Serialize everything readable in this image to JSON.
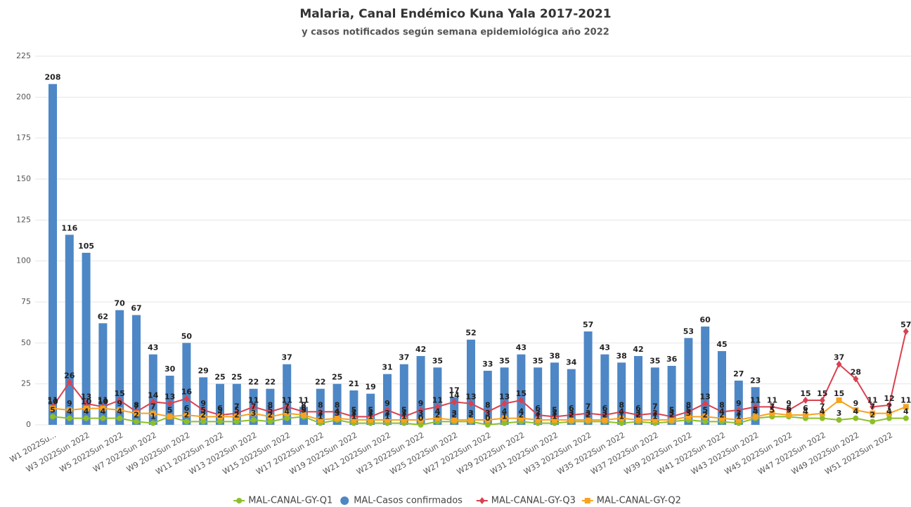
{
  "chart_data": {
    "type": "combo",
    "title": "Malaria, Canal Endémico Kuna Yala 2017-2021",
    "subtitle": "y casos notificados según semana epidemiológica año 2022",
    "categories": [
      "W1 2022Su...",
      null,
      "W3 2022Sun 2022",
      null,
      "W5 2022Sun 2022",
      null,
      "W7 2022Sun 2022",
      null,
      "W9 2022Sun 2022",
      null,
      "W11 2022Sun 2022",
      null,
      "W13 2022Sun 2022",
      null,
      "W15 2022Sun 2022",
      null,
      "W17 2022Sun 2022",
      null,
      "W19 2022Sun 2022",
      null,
      "W21 2022Sun 2022",
      null,
      "W23 2022Sun 2022",
      null,
      "W25 2022Sun 2022",
      null,
      "W27 2022Sun 2022",
      null,
      "W29 2022Sun 2022",
      null,
      "W31 2022Sun 2022",
      null,
      "W33 2022Sun 2022",
      null,
      "W35 2022Sun 2022",
      null,
      "W37 2022Sun 2022",
      null,
      "W39 2022Sun 2022",
      null,
      "W41 2022Sun 2022",
      null,
      "W43 2022Sun 2022",
      null,
      "W45 2022Sun 2022",
      null,
      "W47 2022Sun 2022",
      null,
      "W49 2022Sun 2022",
      null,
      "W51 2022Sun 2022",
      null
    ],
    "series": [
      {
        "name": "MAL-CANAL-GY-Q1",
        "type": "line",
        "marker": "circle",
        "color": "#8dbf2b",
        "values": [
          5,
          4,
          4,
          4,
          4,
          2,
          1,
          5,
          2,
          2,
          2,
          2,
          3,
          2,
          4,
          5,
          1,
          3,
          1,
          1,
          1,
          1,
          0,
          2,
          2,
          2,
          0,
          1,
          2,
          1,
          1,
          2,
          2,
          2,
          1,
          2,
          1,
          2,
          3,
          2,
          2,
          1,
          4,
          5,
          5,
          4,
          4,
          3,
          4,
          2,
          4,
          4
        ]
      },
      {
        "name": "MAL-Casos confirmados",
        "type": "bar",
        "marker": "circle",
        "color": "#4e87c6",
        "values": [
          208,
          116,
          105,
          62,
          70,
          67,
          43,
          30,
          50,
          29,
          25,
          25,
          22,
          22,
          37,
          11,
          22,
          25,
          21,
          19,
          31,
          37,
          42,
          35,
          17,
          52,
          33,
          35,
          43,
          35,
          38,
          34,
          57,
          43,
          38,
          42,
          35,
          36,
          53,
          60,
          45,
          27,
          23,
          null,
          null,
          null,
          null,
          null,
          null,
          null,
          null,
          null
        ]
      },
      {
        "name": "MAL-CANAL-GY-Q3",
        "type": "line",
        "marker": "diamond",
        "color": "#d9414f",
        "values": [
          11,
          26,
          13,
          11,
          15,
          8,
          14,
          13,
          16,
          9,
          6,
          7,
          11,
          8,
          11,
          8,
          8,
          8,
          5,
          5,
          9,
          5,
          9,
          11,
          14,
          13,
          8,
          13,
          15,
          6,
          5,
          6,
          7,
          6,
          8,
          6,
          7,
          5,
          8,
          13,
          8,
          9,
          11,
          11,
          9,
          15,
          15,
          37,
          28,
          11,
          12,
          57
        ]
      },
      {
        "name": "MAL-CANAL-GY-Q2",
        "type": "line",
        "marker": "square",
        "color": "#f6a321",
        "values": [
          10,
          9,
          10,
          10,
          9,
          7,
          7,
          5,
          6,
          5,
          5,
          5,
          7,
          5,
          7,
          6,
          3,
          4,
          3,
          3,
          3,
          3,
          3,
          4,
          3,
          3,
          3,
          4,
          4,
          3,
          3,
          3,
          3,
          3,
          4,
          3,
          3,
          3,
          5,
          5,
          4,
          3,
          5,
          7,
          6,
          6,
          7,
          15,
          9,
          7,
          7,
          11
        ]
      }
    ],
    "ylim": [
      0,
      225
    ],
    "yticks": [
      0,
      25,
      50,
      75,
      100,
      125,
      150,
      175,
      200,
      225
    ],
    "grid": true,
    "legend": "bottom"
  }
}
